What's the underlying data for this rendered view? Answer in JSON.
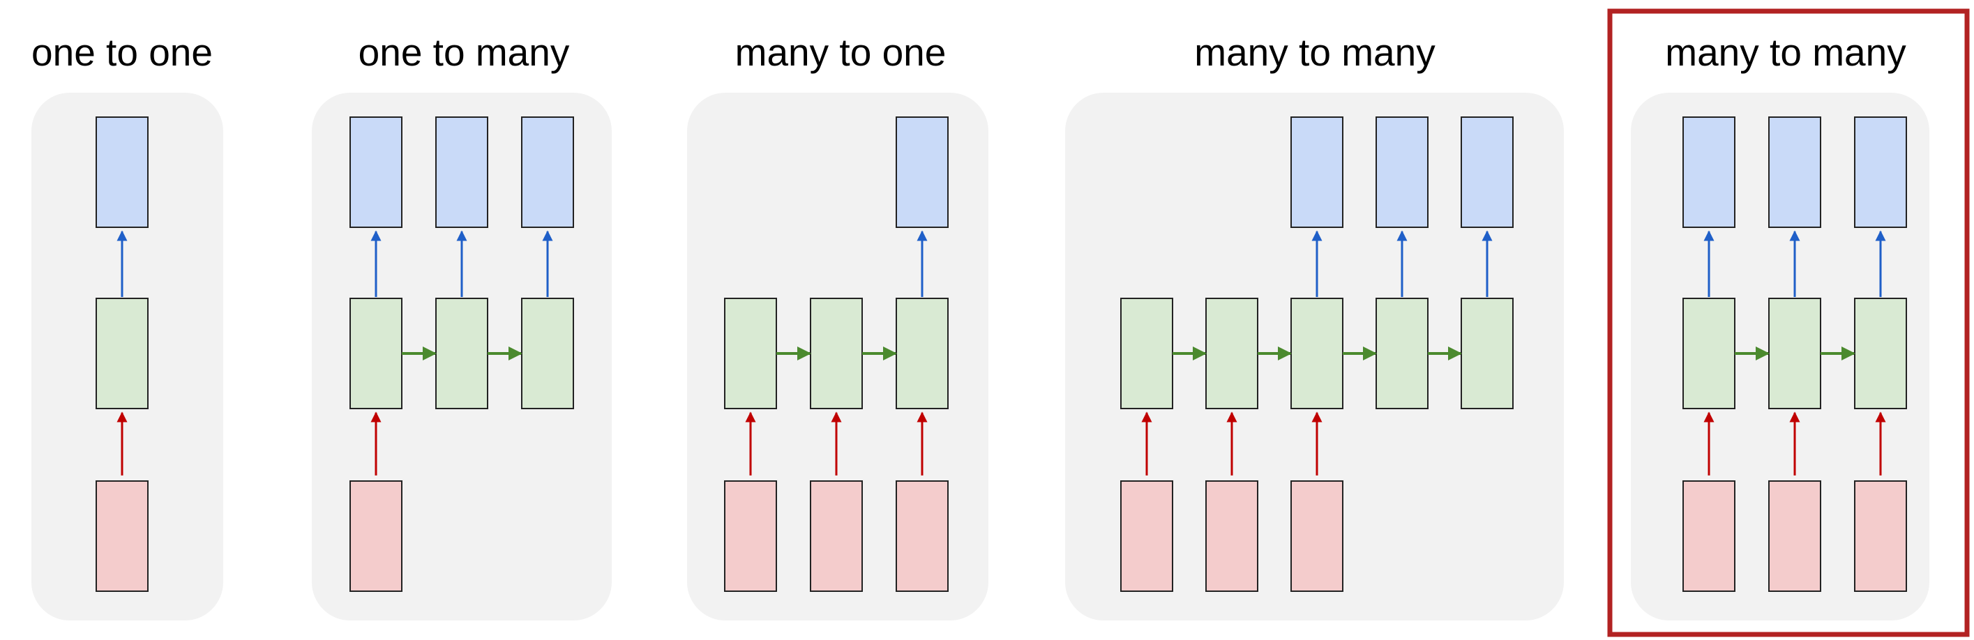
{
  "panels": [
    {
      "title": "one to one",
      "inputs": 1,
      "hidden": 1,
      "outputs": 1,
      "highlighted": false
    },
    {
      "title": "one to many",
      "inputs": 1,
      "hidden": 3,
      "outputs": 3,
      "highlighted": false
    },
    {
      "title": "many to one",
      "inputs": 3,
      "hidden": 3,
      "outputs": 1,
      "highlighted": false
    },
    {
      "title": "many to many",
      "inputs": 3,
      "hidden": 5,
      "outputs": 3,
      "highlighted": false
    },
    {
      "title": "many to many",
      "inputs": 3,
      "hidden": 3,
      "outputs": 3,
      "highlighted": true
    }
  ],
  "colors": {
    "panel_bg": "#f2f2f2",
    "output_fill": "#c9daf8",
    "hidden_fill": "#d9ead3",
    "input_fill": "#f4cccc",
    "box_stroke": "#222222",
    "input_arrow": "#c00000",
    "output_arrow": "#1f5fc8",
    "recurrent_arrow": "#4b8a2e",
    "highlight_border": "#b22222"
  }
}
